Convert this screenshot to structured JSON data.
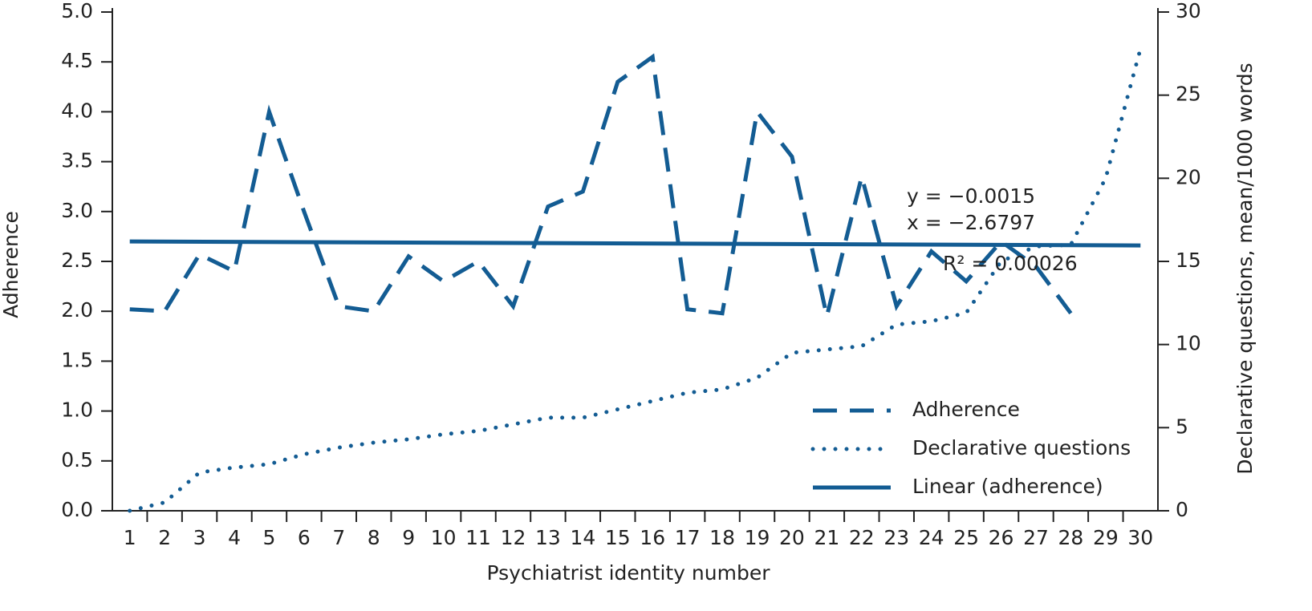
{
  "chart_data": {
    "type": "line",
    "x_label": "Psychiatrist identity number",
    "y_label": "Adherence",
    "y2_label": "Declarative questions, mean/1000 words",
    "categories": [
      "1",
      "2",
      "3",
      "4",
      "5",
      "6",
      "7",
      "8",
      "9",
      "10",
      "11",
      "12",
      "13",
      "14",
      "15",
      "16",
      "17",
      "18",
      "19",
      "20",
      "21",
      "22",
      "23",
      "24",
      "25",
      "26",
      "27",
      "28",
      "29",
      "30"
    ],
    "series": [
      {
        "name": "Adherence",
        "color": "#135c93",
        "style": "dashed",
        "axis": "y",
        "values": [
          2.02,
          2.0,
          2.57,
          2.4,
          4.0,
          3.0,
          2.05,
          2.0,
          2.55,
          2.3,
          2.5,
          2.05,
          3.05,
          3.2,
          4.3,
          4.55,
          2.02,
          1.98,
          4.0,
          3.55,
          1.95,
          3.35,
          2.05,
          2.6,
          2.3,
          2.7,
          2.45,
          1.98,
          null,
          null
        ]
      },
      {
        "name": "Declarative questions",
        "color": "#135c93",
        "style": "dotted",
        "axis": "y2",
        "values": [
          0,
          0.5,
          2.3,
          2.6,
          2.8,
          3.4,
          3.8,
          4.1,
          4.3,
          4.6,
          4.8,
          5.2,
          5.6,
          5.6,
          6.1,
          6.6,
          7.1,
          7.3,
          8.0,
          9.5,
          9.7,
          9.9,
          11.2,
          11.4,
          11.9,
          15.0,
          15.9,
          16.0,
          20.0,
          27.8
        ]
      }
    ],
    "trendline": {
      "name": "Linear (adherence)",
      "color": "#135c93",
      "start": 2.7,
      "end": 2.66
    },
    "annotations": [
      "y = −0.0015",
      "x = −2.6797",
      "R² = 0.00026"
    ],
    "ylim": [
      0,
      5
    ],
    "yticks": [
      {
        "value": 0,
        "label": "0.0"
      },
      {
        "value": 0.5,
        "label": "0.5"
      },
      {
        "value": 1,
        "label": "1.0"
      },
      {
        "value": 1.5,
        "label": "1.5"
      },
      {
        "value": 2,
        "label": "2.0"
      },
      {
        "value": 2.5,
        "label": "2.5"
      },
      {
        "value": 3,
        "label": "3.0"
      },
      {
        "value": 3.5,
        "label": "3.5"
      },
      {
        "value": 4,
        "label": "4.0"
      },
      {
        "value": 4.5,
        "label": "4.5"
      },
      {
        "value": 5,
        "label": "5.0"
      }
    ],
    "y2lim": [
      0,
      30
    ],
    "y2ticks": [
      0,
      5,
      10,
      15,
      20,
      25,
      30
    ],
    "legend": "lower right",
    "grid": false
  }
}
